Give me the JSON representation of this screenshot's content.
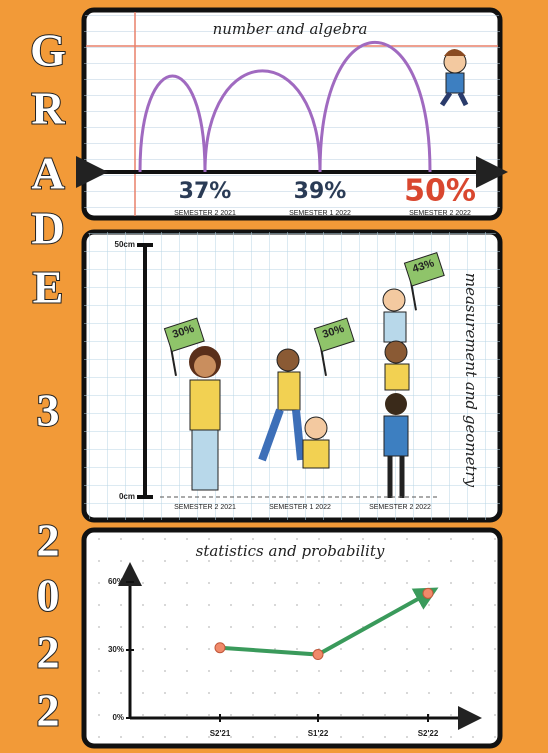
{
  "side_title": [
    "G",
    "R",
    "A",
    "D",
    "E",
    "3",
    "2",
    "0",
    "2",
    "2"
  ],
  "chart_data": [
    {
      "type": "bounce",
      "title": "number and algebra",
      "categories": [
        "SEMESTER 2 2021",
        "SEMESTER 1 2022",
        "SEMESTER 2 2022"
      ],
      "values": [
        37,
        39,
        50
      ],
      "value_labels": [
        "37%",
        "39%",
        "50%"
      ],
      "color": "#a06ac0",
      "label_colors": [
        "#2a3b55",
        "#2a3b55",
        "#d9472f"
      ]
    },
    {
      "type": "flags",
      "title": "measurement and geometry",
      "categories": [
        "SEMESTER 2 2021",
        "SEMESTER 1 2022",
        "SEMESTER 2 2022"
      ],
      "values": [
        30,
        30,
        43
      ],
      "value_labels": [
        "30%",
        "30%",
        "43%"
      ],
      "ylim": [
        0,
        50
      ],
      "yticks": [
        {
          "value": 0,
          "label": "0cm"
        },
        {
          "value": 50,
          "label": "50cm"
        }
      ],
      "color": "#8fc46a"
    },
    {
      "type": "line",
      "title": "statistics and probability",
      "categories": [
        "S2'21",
        "S1'22",
        "S2'22"
      ],
      "values": [
        31,
        28,
        55
      ],
      "ylim": [
        0,
        60
      ],
      "yticks": [
        {
          "value": 0,
          "label": "0%"
        },
        {
          "value": 30,
          "label": "30%"
        },
        {
          "value": 60,
          "label": "60%"
        }
      ],
      "color": "#3a9a5b",
      "marker_color": "#f08a6a"
    }
  ]
}
